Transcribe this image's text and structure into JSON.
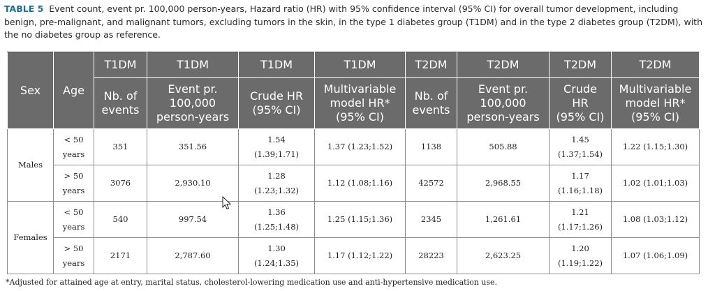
{
  "caption": {
    "label": "TABLE 5",
    "text": "Event count, event pr. 100,000 person-years, Hazard ratio (HR) with 95% confidence interval (95% CI) for overall tumor development, including benign, pre-malignant, and malignant tumors, excluding tumors in the skin, in the type 1 diabetes group (T1DM) and in the type 2 diabetes group (T2DM), with the no diabetes group as reference."
  },
  "table": {
    "group_headers": [
      "T1DM",
      "T1DM",
      "T1DM",
      "T1DM",
      "T2DM",
      "T2DM",
      "T2DM",
      "T2DM"
    ],
    "sex_header": "Sex",
    "age_header": "Age",
    "column_headers": [
      [
        "Nb. of",
        "events"
      ],
      [
        "Event pr.",
        "100,000",
        "person-years"
      ],
      [
        "Crude HR",
        "(95% CI)"
      ],
      [
        "Multivariable",
        "model HR*",
        "(95% CI)"
      ],
      [
        "Nb. of",
        "events"
      ],
      [
        "Event pr.",
        "100,000",
        "person-years"
      ],
      [
        "Crude",
        "HR",
        "(95% CI)"
      ],
      [
        "Multivariable",
        "model HR*",
        "(95% CI)"
      ]
    ],
    "groups": [
      {
        "sex": "Males",
        "rows": [
          {
            "age": [
              "< 50",
              "years"
            ],
            "cells": [
              [
                "351"
              ],
              [
                "351.56"
              ],
              [
                "1.54",
                "(1.39;1.71)"
              ],
              [
                "1.37 (1.23;1.52)"
              ],
              [
                "1138"
              ],
              [
                "505.88"
              ],
              [
                "1.45",
                "(1.37;1.54)"
              ],
              [
                "1.22 (1.15;1.30)"
              ]
            ]
          },
          {
            "age": [
              "> 50",
              "years"
            ],
            "cells": [
              [
                "3076"
              ],
              [
                "2,930.10"
              ],
              [
                "1.28",
                "(1.23;1.32)"
              ],
              [
                "1.12 (1.08;1.16)"
              ],
              [
                "42572"
              ],
              [
                "2,968.55"
              ],
              [
                "1.17",
                "(1.16;1.18)"
              ],
              [
                "1.02 (1.01;1.03)"
              ]
            ]
          }
        ]
      },
      {
        "sex": "Females",
        "rows": [
          {
            "age": [
              "< 50",
              "years"
            ],
            "cells": [
              [
                "540"
              ],
              [
                "997.54"
              ],
              [
                "1.36",
                "(1.25;1.48)"
              ],
              [
                "1.25 (1.15;1.36)"
              ],
              [
                "2345"
              ],
              [
                "1,261.61"
              ],
              [
                "1.21",
                "(1.17;1.26)"
              ],
              [
                "1.08 (1.03;1.12)"
              ]
            ]
          },
          {
            "age": [
              "> 50",
              "years"
            ],
            "cells": [
              [
                "2171"
              ],
              [
                "2,787.60"
              ],
              [
                "1.30",
                "(1.24;1.35)"
              ],
              [
                "1.17 (1.12;1.22)"
              ],
              [
                "28223"
              ],
              [
                "2,623.25"
              ],
              [
                "1.20",
                "(1.19;1.22)"
              ],
              [
                "1.07 (1.06;1.09)"
              ]
            ]
          }
        ]
      }
    ]
  },
  "footnote": "*Adjusted for attained age at entry, marital status, cholesterol-lowering medication use and anti-hypertensive medication use.",
  "colors": {
    "header_bg": "#6b6b6b",
    "caption_label": "#1f6f8b"
  },
  "cursor_icon": "mouse-pointer-icon"
}
